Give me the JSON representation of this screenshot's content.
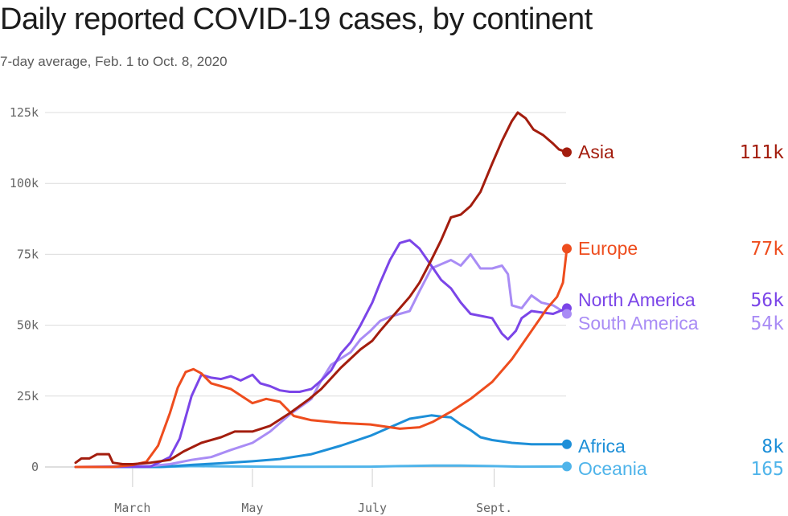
{
  "title": "Daily reported COVID-19 cases, by continent",
  "subtitle": "7-day average, Feb. 1 to Oct. 8, 2020",
  "chart_data": {
    "type": "line",
    "title": "Daily reported COVID-19 cases, by continent",
    "subtitle": "7-day average, Feb. 1 to Oct. 8, 2020",
    "xlabel": "",
    "ylabel": "",
    "x_range": [
      "2020-02-01",
      "2020-10-08"
    ],
    "ylim": [
      0,
      125000
    ],
    "y_ticks": [
      0,
      25000,
      50000,
      75000,
      100000,
      125000
    ],
    "y_tick_labels": [
      "0",
      "25k",
      "50k",
      "75k",
      "100k",
      "125k"
    ],
    "x_ticks": [
      "2020-03-01",
      "2020-05-01",
      "2020-07-01",
      "2020-09-01"
    ],
    "x_tick_labels": [
      "March",
      "May",
      "July",
      "Sept."
    ],
    "grid": "horizontal",
    "legend": "direct labels at line ends (right)",
    "series": [
      {
        "name": "Asia",
        "end_label": "111k",
        "color": "#a31d0e",
        "points": [
          [
            "2020-02-01",
            1500
          ],
          [
            "2020-02-04",
            3000
          ],
          [
            "2020-02-08",
            3000
          ],
          [
            "2020-02-12",
            4500
          ],
          [
            "2020-02-18",
            4500
          ],
          [
            "2020-02-20",
            1500
          ],
          [
            "2020-02-25",
            1000
          ],
          [
            "2020-03-01",
            1000
          ],
          [
            "2020-03-10",
            1500
          ],
          [
            "2020-03-20",
            2500
          ],
          [
            "2020-03-27",
            5500
          ],
          [
            "2020-04-05",
            8500
          ],
          [
            "2020-04-15",
            10500
          ],
          [
            "2020-04-22",
            12500
          ],
          [
            "2020-05-01",
            12500
          ],
          [
            "2020-05-10",
            14500
          ],
          [
            "2020-05-20",
            19000
          ],
          [
            "2020-05-30",
            24000
          ],
          [
            "2020-06-05",
            27500
          ],
          [
            "2020-06-15",
            35000
          ],
          [
            "2020-06-25",
            41500
          ],
          [
            "2020-07-01",
            44500
          ],
          [
            "2020-07-05",
            48000
          ],
          [
            "2020-07-10",
            52000
          ],
          [
            "2020-07-15",
            56000
          ],
          [
            "2020-07-20",
            60000
          ],
          [
            "2020-07-25",
            65000
          ],
          [
            "2020-07-31",
            73000
          ],
          [
            "2020-08-05",
            80000
          ],
          [
            "2020-08-10",
            88000
          ],
          [
            "2020-08-15",
            89000
          ],
          [
            "2020-08-20",
            92000
          ],
          [
            "2020-08-25",
            97000
          ],
          [
            "2020-08-31",
            107000
          ],
          [
            "2020-09-05",
            115000
          ],
          [
            "2020-09-10",
            122000
          ],
          [
            "2020-09-13",
            125000
          ],
          [
            "2020-09-17",
            123000
          ],
          [
            "2020-09-21",
            119000
          ],
          [
            "2020-09-26",
            117000
          ],
          [
            "2020-10-01",
            114000
          ],
          [
            "2020-10-04",
            112000
          ],
          [
            "2020-10-08",
            111000
          ]
        ]
      },
      {
        "name": "Europe",
        "end_label": "77k",
        "color": "#ee4d1e",
        "points": [
          [
            "2020-02-01",
            0
          ],
          [
            "2020-02-20",
            0
          ],
          [
            "2020-03-01",
            700
          ],
          [
            "2020-03-08",
            1800
          ],
          [
            "2020-03-14",
            7500
          ],
          [
            "2020-03-20",
            19000
          ],
          [
            "2020-03-24",
            28000
          ],
          [
            "2020-03-28",
            33500
          ],
          [
            "2020-04-01",
            34500
          ],
          [
            "2020-04-05",
            33000
          ],
          [
            "2020-04-10",
            29500
          ],
          [
            "2020-04-20",
            27500
          ],
          [
            "2020-05-01",
            22500
          ],
          [
            "2020-05-08",
            24000
          ],
          [
            "2020-05-15",
            23000
          ],
          [
            "2020-05-22",
            18000
          ],
          [
            "2020-05-31",
            16500
          ],
          [
            "2020-06-15",
            15500
          ],
          [
            "2020-06-30",
            15000
          ],
          [
            "2020-07-15",
            13500
          ],
          [
            "2020-07-25",
            14000
          ],
          [
            "2020-08-01",
            16000
          ],
          [
            "2020-08-10",
            19500
          ],
          [
            "2020-08-20",
            24000
          ],
          [
            "2020-08-31",
            30000
          ],
          [
            "2020-09-10",
            38000
          ],
          [
            "2020-09-20",
            48000
          ],
          [
            "2020-09-28",
            56000
          ],
          [
            "2020-10-03",
            60000
          ],
          [
            "2020-10-06",
            65000
          ],
          [
            "2020-10-08",
            77000
          ]
        ]
      },
      {
        "name": "North America",
        "end_label": "56k",
        "color": "#7b45e8",
        "points": [
          [
            "2020-02-01",
            0
          ],
          [
            "2020-03-10",
            100
          ],
          [
            "2020-03-20",
            3500
          ],
          [
            "2020-03-25",
            10000
          ],
          [
            "2020-03-31",
            25000
          ],
          [
            "2020-04-05",
            32500
          ],
          [
            "2020-04-10",
            31500
          ],
          [
            "2020-04-15",
            31000
          ],
          [
            "2020-04-20",
            32000
          ],
          [
            "2020-04-25",
            30500
          ],
          [
            "2020-05-01",
            32500
          ],
          [
            "2020-05-05",
            29500
          ],
          [
            "2020-05-10",
            28500
          ],
          [
            "2020-05-15",
            27000
          ],
          [
            "2020-05-20",
            26500
          ],
          [
            "2020-05-25",
            26500
          ],
          [
            "2020-05-31",
            27500
          ],
          [
            "2020-06-05",
            30500
          ],
          [
            "2020-06-10",
            34000
          ],
          [
            "2020-06-15",
            40000
          ],
          [
            "2020-06-20",
            44000
          ],
          [
            "2020-06-25",
            50000
          ],
          [
            "2020-07-01",
            58000
          ],
          [
            "2020-07-05",
            65000
          ],
          [
            "2020-07-10",
            73000
          ],
          [
            "2020-07-15",
            79000
          ],
          [
            "2020-07-20",
            80000
          ],
          [
            "2020-07-25",
            77000
          ],
          [
            "2020-07-31",
            71000
          ],
          [
            "2020-08-05",
            66000
          ],
          [
            "2020-08-10",
            63000
          ],
          [
            "2020-08-15",
            58000
          ],
          [
            "2020-08-20",
            54000
          ],
          [
            "2020-08-31",
            52500
          ],
          [
            "2020-09-05",
            47000
          ],
          [
            "2020-09-08",
            45000
          ],
          [
            "2020-09-12",
            48000
          ],
          [
            "2020-09-15",
            52500
          ],
          [
            "2020-09-20",
            55000
          ],
          [
            "2020-09-25",
            54500
          ],
          [
            "2020-10-01",
            54000
          ],
          [
            "2020-10-08",
            56000
          ]
        ]
      },
      {
        "name": "South America",
        "end_label": "54k",
        "color": "#a98cf5",
        "points": [
          [
            "2020-02-01",
            0
          ],
          [
            "2020-03-10",
            300
          ],
          [
            "2020-03-20",
            1000
          ],
          [
            "2020-03-31",
            2500
          ],
          [
            "2020-04-10",
            3500
          ],
          [
            "2020-04-20",
            6000
          ],
          [
            "2020-05-01",
            8500
          ],
          [
            "2020-05-10",
            12500
          ],
          [
            "2020-05-20",
            18500
          ],
          [
            "2020-05-31",
            24000
          ],
          [
            "2020-06-05",
            30500
          ],
          [
            "2020-06-10",
            36000
          ],
          [
            "2020-06-20",
            40500
          ],
          [
            "2020-06-25",
            45000
          ],
          [
            "2020-06-30",
            48000
          ],
          [
            "2020-07-05",
            51500
          ],
          [
            "2020-07-10",
            53000
          ],
          [
            "2020-07-20",
            55000
          ],
          [
            "2020-07-25",
            62000
          ],
          [
            "2020-07-31",
            70000
          ],
          [
            "2020-08-10",
            73000
          ],
          [
            "2020-08-15",
            71000
          ],
          [
            "2020-08-20",
            75000
          ],
          [
            "2020-08-25",
            70000
          ],
          [
            "2020-08-31",
            70000
          ],
          [
            "2020-09-05",
            71000
          ],
          [
            "2020-09-08",
            68000
          ],
          [
            "2020-09-10",
            57000
          ],
          [
            "2020-09-15",
            56000
          ],
          [
            "2020-09-20",
            60500
          ],
          [
            "2020-09-25",
            58000
          ],
          [
            "2020-10-01",
            57000
          ],
          [
            "2020-10-08",
            54000
          ]
        ]
      },
      {
        "name": "Africa",
        "end_label": "8k",
        "color": "#1d8fd8",
        "points": [
          [
            "2020-02-01",
            0
          ],
          [
            "2020-03-15",
            0
          ],
          [
            "2020-04-01",
            800
          ],
          [
            "2020-04-15",
            1300
          ],
          [
            "2020-05-01",
            2000
          ],
          [
            "2020-05-15",
            2800
          ],
          [
            "2020-05-31",
            4500
          ],
          [
            "2020-06-15",
            7500
          ],
          [
            "2020-06-30",
            11000
          ],
          [
            "2020-07-10",
            14000
          ],
          [
            "2020-07-20",
            17000
          ],
          [
            "2020-07-31",
            18200
          ],
          [
            "2020-08-05",
            17800
          ],
          [
            "2020-08-10",
            17500
          ],
          [
            "2020-08-15",
            15000
          ],
          [
            "2020-08-20",
            13000
          ],
          [
            "2020-08-25",
            10500
          ],
          [
            "2020-08-31",
            9500
          ],
          [
            "2020-09-10",
            8500
          ],
          [
            "2020-09-20",
            8000
          ],
          [
            "2020-10-01",
            8000
          ],
          [
            "2020-10-08",
            8000
          ]
        ]
      },
      {
        "name": "Oceania",
        "end_label": "165",
        "color": "#4fb4ea",
        "points": [
          [
            "2020-02-01",
            0
          ],
          [
            "2020-03-15",
            0
          ],
          [
            "2020-04-01",
            300
          ],
          [
            "2020-04-15",
            200
          ],
          [
            "2020-05-15",
            50
          ],
          [
            "2020-06-30",
            100
          ],
          [
            "2020-07-15",
            300
          ],
          [
            "2020-08-01",
            500
          ],
          [
            "2020-08-15",
            500
          ],
          [
            "2020-08-31",
            300
          ],
          [
            "2020-09-15",
            100
          ],
          [
            "2020-10-08",
            165
          ]
        ]
      }
    ]
  }
}
